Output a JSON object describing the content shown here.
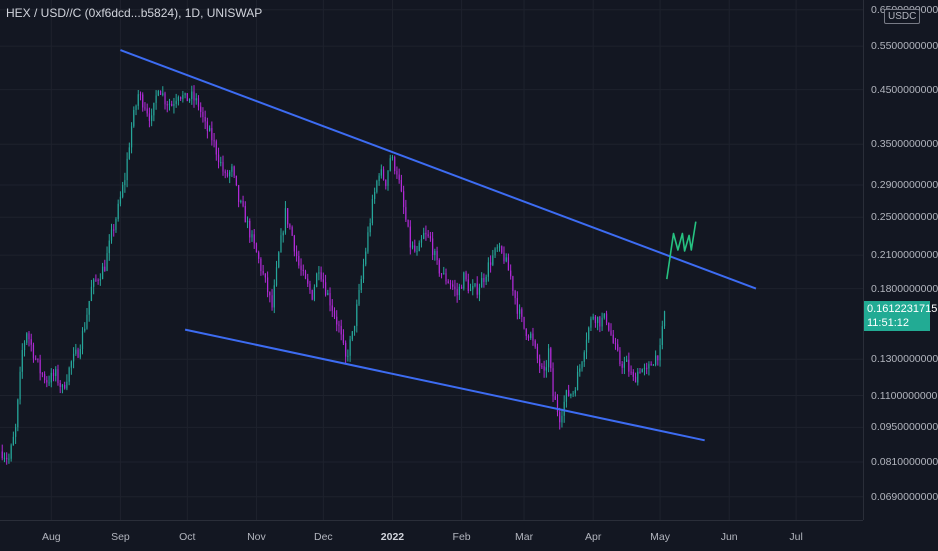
{
  "header": {
    "symbol_title": "HEX / USD//C (0xf6dcd...b5824), 1D, UNISWAP"
  },
  "price_axis": {
    "unit": "USDC",
    "ticks": [
      "0.6500000000",
      "0.5500000000",
      "0.4500000000",
      "0.3500000000",
      "0.2900000000",
      "0.2500000000",
      "0.2100000000",
      "0.1800000000",
      "0.1300000000",
      "0.1100000000",
      "0.0950000000",
      "0.0810000000",
      "0.0690000000"
    ],
    "tick_values": [
      0.65,
      0.55,
      0.45,
      0.35,
      0.29,
      0.25,
      0.21,
      0.18,
      0.13,
      0.11,
      0.095,
      0.081,
      0.069
    ]
  },
  "time_axis": {
    "ticks": [
      "Aug",
      "Sep",
      "Oct",
      "Nov",
      "Dec",
      "2022",
      "Feb",
      "Mar",
      "Apr",
      "May",
      "Jun",
      "Jul"
    ],
    "tick_dates": [
      "2021-08-01",
      "2021-09-01",
      "2021-10-01",
      "2021-11-01",
      "2021-12-01",
      "2022-01-01",
      "2022-02-01",
      "2022-03-01",
      "2022-04-01",
      "2022-05-01",
      "2022-06-01",
      "2022-07-01"
    ]
  },
  "last_price": {
    "value": "0.16122317",
    "value_suffix": "15",
    "countdown": "11:51:12"
  },
  "colors": {
    "background": "#131722",
    "candle_up": "#26a69a",
    "candle_down": "#b02ad6",
    "trendline": "#3d6cf2",
    "projection": "#26c281",
    "last_price_badge": "#22ab94"
  },
  "chart_data": {
    "type": "candlestick",
    "title": "HEX / USD//C (0xf6dcd...b5824), 1D, UNISWAP",
    "y_scale": "log",
    "ylim": [
      0.062,
      0.68
    ],
    "xlim": [
      "2021-07-09",
      "2022-07-31"
    ],
    "price_path": [
      [
        "2021-07-10",
        0.085
      ],
      [
        "2021-07-13",
        0.082
      ],
      [
        "2021-07-16",
        0.094
      ],
      [
        "2021-07-19",
        0.135
      ],
      [
        "2021-07-21",
        0.148
      ],
      [
        "2021-07-24",
        0.134
      ],
      [
        "2021-07-27",
        0.123
      ],
      [
        "2021-07-30",
        0.118
      ],
      [
        "2021-08-03",
        0.121
      ],
      [
        "2021-08-06",
        0.113
      ],
      [
        "2021-08-10",
        0.128
      ],
      [
        "2021-08-13",
        0.135
      ],
      [
        "2021-08-16",
        0.152
      ],
      [
        "2021-08-19",
        0.18
      ],
      [
        "2021-08-22",
        0.19
      ],
      [
        "2021-08-25",
        0.2
      ],
      [
        "2021-08-28",
        0.23
      ],
      [
        "2021-08-31",
        0.26
      ],
      [
        "2021-09-03",
        0.3
      ],
      [
        "2021-09-06",
        0.38
      ],
      [
        "2021-09-09",
        0.44
      ],
      [
        "2021-09-12",
        0.42
      ],
      [
        "2021-09-15",
        0.39
      ],
      [
        "2021-09-18",
        0.46
      ],
      [
        "2021-09-21",
        0.43
      ],
      [
        "2021-09-24",
        0.42
      ],
      [
        "2021-09-27",
        0.445
      ],
      [
        "2021-09-30",
        0.43
      ],
      [
        "2021-10-03",
        0.435
      ],
      [
        "2021-10-06",
        0.42
      ],
      [
        "2021-10-09",
        0.38
      ],
      [
        "2021-10-12",
        0.36
      ],
      [
        "2021-10-15",
        0.33
      ],
      [
        "2021-10-18",
        0.3
      ],
      [
        "2021-10-21",
        0.31
      ],
      [
        "2021-10-24",
        0.27
      ],
      [
        "2021-10-27",
        0.25
      ],
      [
        "2021-10-30",
        0.225
      ],
      [
        "2021-11-02",
        0.205
      ],
      [
        "2021-11-05",
        0.185
      ],
      [
        "2021-11-08",
        0.165
      ],
      [
        "2021-11-11",
        0.21
      ],
      [
        "2021-11-14",
        0.255
      ],
      [
        "2021-11-17",
        0.23
      ],
      [
        "2021-11-20",
        0.2
      ],
      [
        "2021-11-23",
        0.185
      ],
      [
        "2021-11-26",
        0.175
      ],
      [
        "2021-11-29",
        0.2
      ],
      [
        "2021-12-02",
        0.18
      ],
      [
        "2021-12-05",
        0.165
      ],
      [
        "2021-12-08",
        0.15
      ],
      [
        "2021-12-11",
        0.13
      ],
      [
        "2021-12-14",
        0.145
      ],
      [
        "2021-12-17",
        0.175
      ],
      [
        "2021-12-20",
        0.215
      ],
      [
        "2021-12-23",
        0.265
      ],
      [
        "2021-12-26",
        0.31
      ],
      [
        "2021-12-29",
        0.295
      ],
      [
        "2021-12-31",
        0.33
      ],
      [
        "2022-01-03",
        0.31
      ],
      [
        "2022-01-06",
        0.26
      ],
      [
        "2022-01-09",
        0.22
      ],
      [
        "2022-01-12",
        0.21
      ],
      [
        "2022-01-15",
        0.23
      ],
      [
        "2022-01-18",
        0.225
      ],
      [
        "2022-01-21",
        0.2
      ],
      [
        "2022-01-24",
        0.19
      ],
      [
        "2022-01-27",
        0.185
      ],
      [
        "2022-01-30",
        0.175
      ],
      [
        "2022-02-02",
        0.19
      ],
      [
        "2022-02-05",
        0.178
      ],
      [
        "2022-02-08",
        0.18
      ],
      [
        "2022-02-11",
        0.19
      ],
      [
        "2022-02-14",
        0.205
      ],
      [
        "2022-02-17",
        0.215
      ],
      [
        "2022-02-20",
        0.208
      ],
      [
        "2022-02-23",
        0.19
      ],
      [
        "2022-02-26",
        0.165
      ],
      [
        "2022-03-01",
        0.15
      ],
      [
        "2022-03-04",
        0.145
      ],
      [
        "2022-03-07",
        0.13
      ],
      [
        "2022-03-10",
        0.12
      ],
      [
        "2022-03-12",
        0.135
      ],
      [
        "2022-03-14",
        0.11
      ],
      [
        "2022-03-17",
        0.1
      ],
      [
        "2022-03-20",
        0.11
      ],
      [
        "2022-03-23",
        0.112
      ],
      [
        "2022-03-26",
        0.125
      ],
      [
        "2022-03-29",
        0.145
      ],
      [
        "2022-04-01",
        0.16
      ],
      [
        "2022-04-04",
        0.155
      ],
      [
        "2022-04-07",
        0.157
      ],
      [
        "2022-04-10",
        0.14
      ],
      [
        "2022-04-13",
        0.128
      ],
      [
        "2022-04-16",
        0.127
      ],
      [
        "2022-04-19",
        0.118
      ],
      [
        "2022-04-22",
        0.125
      ],
      [
        "2022-04-25",
        0.122
      ],
      [
        "2022-04-28",
        0.13
      ],
      [
        "2022-05-01",
        0.135
      ],
      [
        "2022-05-03",
        0.161
      ]
    ],
    "trendlines": [
      {
        "from": [
          "2021-09-01",
          0.54
        ],
        "to": [
          "2022-06-13",
          0.18
        ]
      },
      {
        "from": [
          "2021-09-30",
          0.149
        ],
        "to": [
          "2022-05-21",
          0.0895
        ]
      }
    ],
    "projection_path": [
      [
        "2022-05-04",
        0.188
      ],
      [
        "2022-05-07",
        0.232
      ],
      [
        "2022-05-09",
        0.215
      ],
      [
        "2022-05-11",
        0.232
      ],
      [
        "2022-05-12",
        0.214
      ],
      [
        "2022-05-14",
        0.23
      ],
      [
        "2022-05-15",
        0.215
      ],
      [
        "2022-05-17",
        0.245
      ]
    ]
  }
}
